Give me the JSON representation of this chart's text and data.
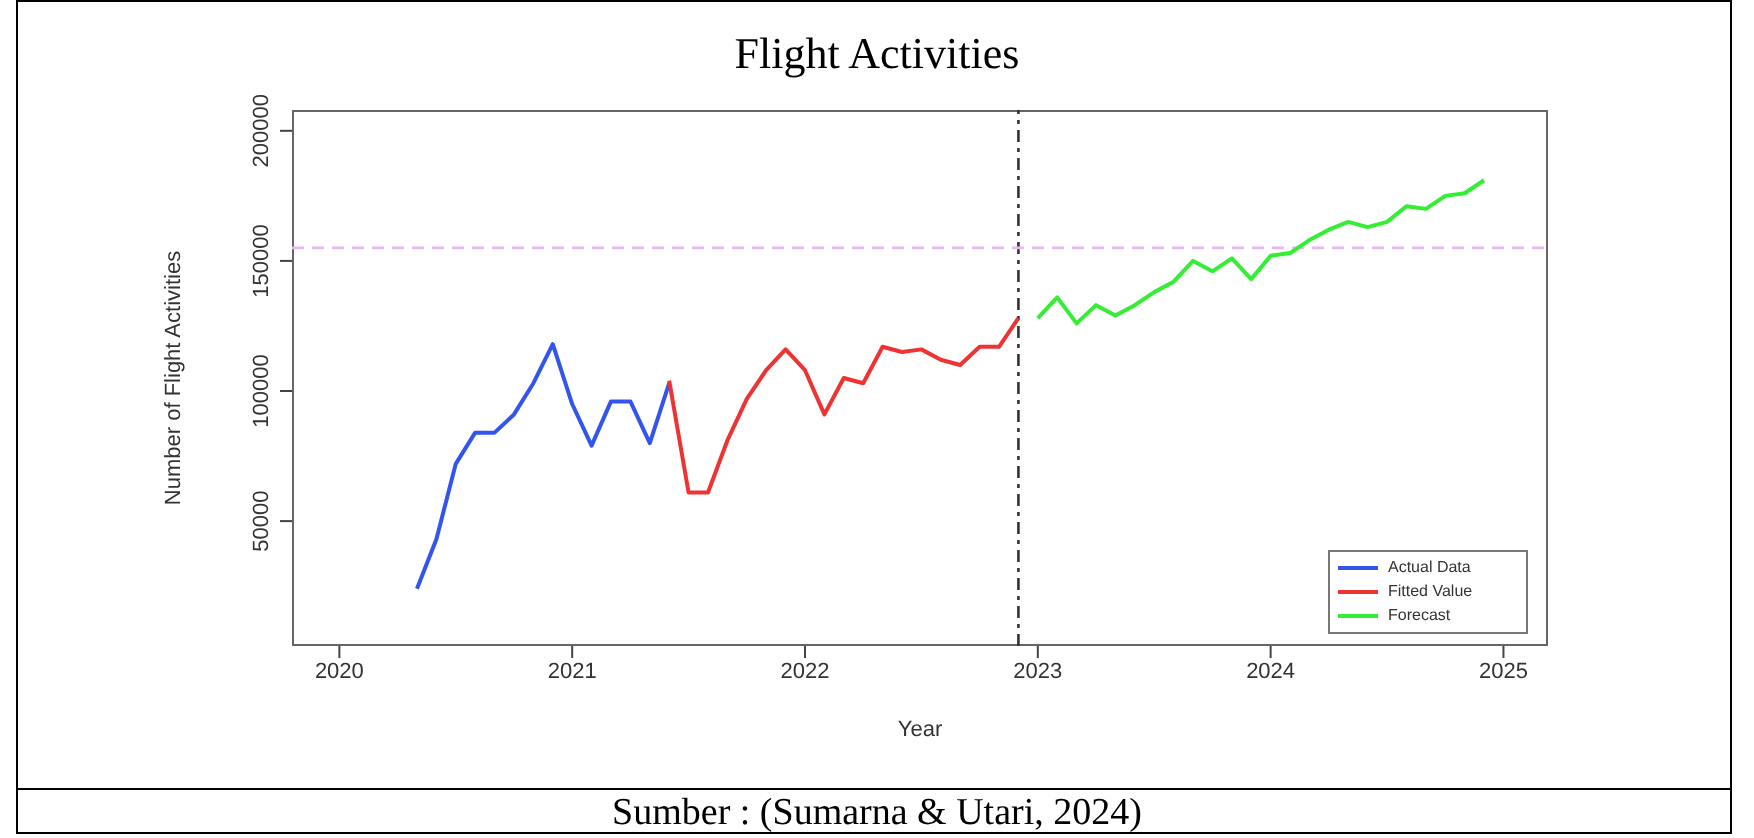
{
  "chart_data": {
    "type": "line",
    "title": "Flight Activities",
    "xlabel": "Year",
    "ylabel": "Number of Flight Activities",
    "annotations": [
      "Sumber : (Sumarna & Utari, 2024)"
    ],
    "series": [
      {
        "name": "Actual Data",
        "color": "#3355ee",
        "x": [
          "2020-05",
          "2020-06",
          "2020-07",
          "2020-08",
          "2020-09",
          "2020-10",
          "2020-11",
          "2020-12",
          "2021-01",
          "2021-02",
          "2021-03",
          "2021-04",
          "2021-05",
          "2021-06"
        ],
        "values": [
          24000,
          43000,
          72000,
          84000,
          84000,
          91000,
          103000,
          118000,
          95000,
          79000,
          96000,
          96000,
          80000,
          103000
        ]
      },
      {
        "name": "Fitted Value",
        "color": "#ee3333",
        "x": [
          "2021-06",
          "2021-07",
          "2021-08",
          "2021-09",
          "2021-10",
          "2021-11",
          "2021-12",
          "2022-01",
          "2022-02",
          "2022-03",
          "2022-04",
          "2022-05",
          "2022-06",
          "2022-07",
          "2022-08",
          "2022-09",
          "2022-10",
          "2022-11",
          "2022-12"
        ],
        "values": [
          104000,
          61000,
          61000,
          81000,
          97000,
          108000,
          116000,
          108000,
          91000,
          105000,
          103000,
          117000,
          115000,
          116000,
          112000,
          110000,
          117000,
          117000,
          128000
        ]
      },
      {
        "name": "Forecast",
        "color": "#33ee33",
        "x": [
          "2023-01",
          "2023-02",
          "2023-03",
          "2023-04",
          "2023-05",
          "2023-06",
          "2023-07",
          "2023-08",
          "2023-09",
          "2023-10",
          "2023-11",
          "2023-12",
          "2024-01",
          "2024-02",
          "2024-03",
          "2024-04",
          "2024-05",
          "2024-06",
          "2024-07",
          "2024-08",
          "2024-09",
          "2024-10",
          "2024-11",
          "2024-12"
        ],
        "values": [
          128000,
          136000,
          126000,
          133000,
          129000,
          133000,
          138000,
          142000,
          150000,
          146000,
          151000,
          143000,
          152000,
          153000,
          158000,
          162000,
          165000,
          163000,
          165000,
          171000,
          170000,
          175000,
          176000,
          181000
        ]
      }
    ],
    "xlim": [
      "2019-10-18",
      "2025-03-10"
    ],
    "xticks": [
      "2020",
      "2021",
      "2022",
      "2023",
      "2024",
      "2025"
    ],
    "ylim": [
      2000,
      208000
    ],
    "yticks": [
      50000,
      100000,
      150000,
      200000
    ],
    "ref_lines": [
      {
        "axis": "x",
        "value": "2022-12",
        "color": "#333333",
        "line_style": "dashdot"
      },
      {
        "axis": "y",
        "value": 155000,
        "color": "#e8b8f0",
        "line_style": "dashed"
      }
    ],
    "legend": "bottom right",
    "grid": false,
    "marker": "none",
    "line_style": "solid"
  }
}
